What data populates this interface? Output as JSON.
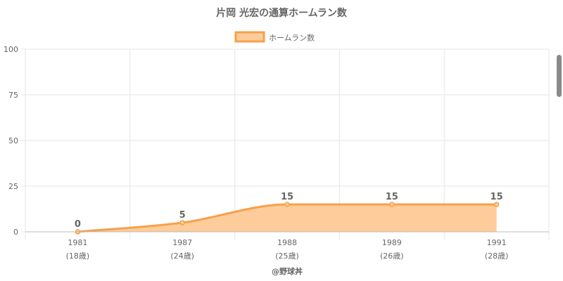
{
  "chart_data": {
    "type": "area",
    "title": "片岡 光宏の通算ホームラン数",
    "categories": [
      "1981",
      "1987",
      "1988",
      "1989",
      "1991"
    ],
    "sublabels": [
      "(18歳)",
      "(24歳)",
      "(25歳)",
      "(26歳)",
      "(28歳)"
    ],
    "series": [
      {
        "name": "ホームラン数",
        "values": [
          0,
          5,
          15,
          15,
          15
        ],
        "data_labels": [
          "0",
          "5",
          "15",
          "15",
          "15"
        ],
        "line_color": "#f7a04a",
        "fill_color": "#fdcc9a"
      }
    ],
    "ylim": [
      0,
      100
    ],
    "yticks": [
      0,
      25,
      50,
      75,
      100
    ],
    "ytick_labels": [
      "0",
      "25",
      "50",
      "75",
      "100"
    ],
    "grid": true,
    "legend_position": "top-center",
    "footer": "@野球丼"
  },
  "colors": {
    "grid": "#e6e6e6",
    "axis": "#bbbbbb",
    "text": "#666666",
    "scroll_thumb": "#8a8a8a"
  }
}
